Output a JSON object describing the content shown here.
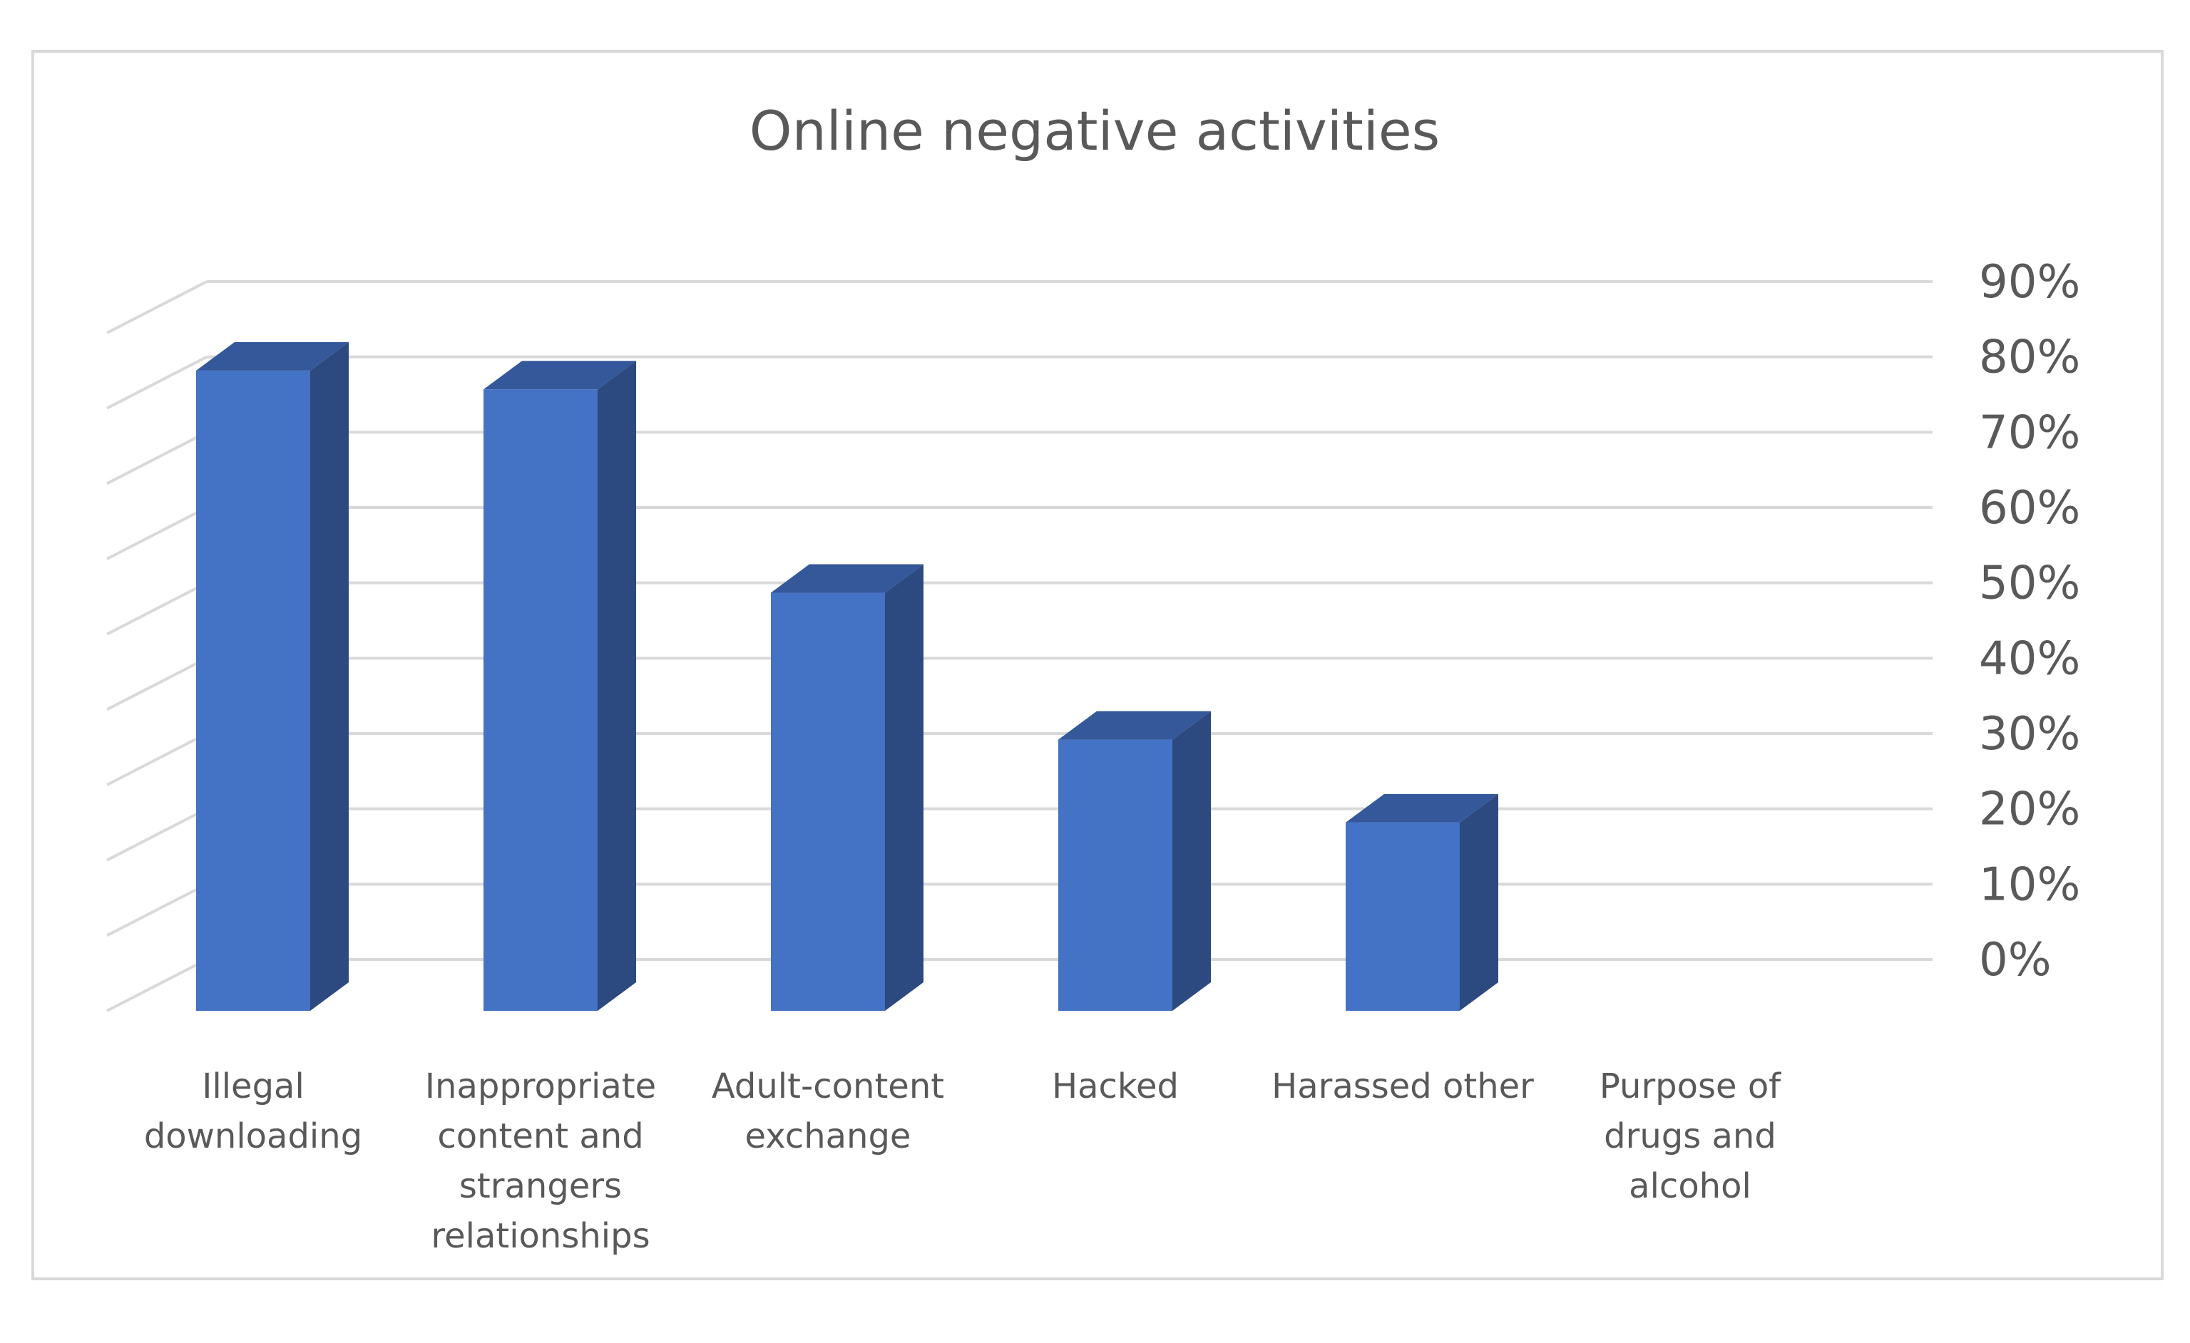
{
  "chart_data": {
    "type": "bar",
    "style": "3d-column",
    "title": "Online negative activities",
    "xlabel": "",
    "ylabel": "",
    "categories": [
      "Illegal downloading",
      "Inappropriate content and strangers relationships",
      "Adult-content exchange",
      "Hacked",
      "Harassed other",
      "Purpose of drugs and alcohol"
    ],
    "category_label_lines": [
      [
        "Illegal",
        "downloading"
      ],
      [
        "Inappropriate",
        "content and",
        "strangers",
        "relationships"
      ],
      [
        "Adult-content",
        "exchange"
      ],
      [
        "Hacked"
      ],
      [
        "Harassed other"
      ],
      [
        "Purpose of",
        "drugs and",
        "alcohol"
      ]
    ],
    "values": [
      0.85,
      0.825,
      0.555,
      0.36,
      0.25,
      0
    ],
    "ylim": [
      0,
      0.9
    ],
    "yticks": [
      0,
      0.1,
      0.2,
      0.3,
      0.4,
      0.5,
      0.6,
      0.7,
      0.8,
      0.9
    ],
    "ytick_labels": [
      "0%",
      "10%",
      "20%",
      "30%",
      "40%",
      "50%",
      "60%",
      "70%",
      "80%",
      "90%"
    ],
    "y_axis_position": "right",
    "grid": true,
    "legend": "none",
    "colors": {
      "bar_front": "#4472C4",
      "bar_side": "#2C4A80",
      "bar_top": "#34589A",
      "gridline": "#D9D9D9",
      "frame": "#D9D9D9",
      "text": "#595959"
    }
  }
}
